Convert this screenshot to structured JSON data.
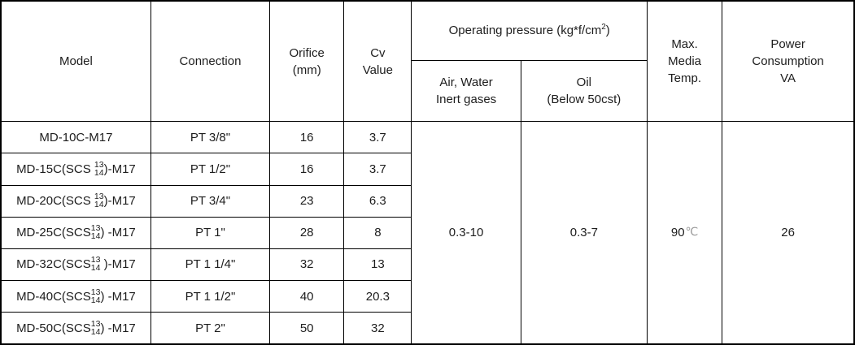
{
  "table": {
    "header": {
      "model": "Model",
      "connection": "Connection",
      "orifice_line1": "Orifice",
      "orifice_line2": "(mm)",
      "cv_line1": "Cv",
      "cv_line2": "Value",
      "op_pressure_prefix": "Operating pressure (kg*f/cm",
      "op_pressure_sup": "2",
      "op_pressure_suffix": ")",
      "air_line1": "Air, Water",
      "air_line2": "Inert gases",
      "oil_line1": "Oil",
      "oil_line2": "(Below 50cst)",
      "max_temp_line1": "Max.",
      "max_temp_line2": "Media",
      "max_temp_line3": "Temp.",
      "power_line1": "Power",
      "power_line2": "Consumption",
      "power_line3": "VA"
    },
    "rows": [
      {
        "model_prefix": "MD-10C-M17",
        "stack_top": "",
        "stack_bottom": "",
        "model_suffix": "",
        "connection": "PT 3/8\"",
        "orifice": "16",
        "cv": "3.7"
      },
      {
        "model_prefix": "MD-15C(SCS ",
        "stack_top": "13",
        "stack_bottom": "14",
        "model_suffix": ")-M17",
        "connection": "PT 1/2\"",
        "orifice": "16",
        "cv": "3.7"
      },
      {
        "model_prefix": "MD-20C(SCS ",
        "stack_top": "13",
        "stack_bottom": "14",
        "model_suffix": ")-M17",
        "connection": "PT 3/4\"",
        "orifice": "23",
        "cv": "6.3"
      },
      {
        "model_prefix": "MD-25C(SCS",
        "stack_top": "13",
        "stack_bottom": "14",
        "model_suffix": ") -M17",
        "connection": "PT 1\"",
        "orifice": "28",
        "cv": "8"
      },
      {
        "model_prefix": "MD-32C(SCS",
        "stack_top": "13",
        "stack_bottom": "14",
        "model_suffix": " )-M17",
        "connection": "PT 1 1/4\"",
        "orifice": "32",
        "cv": "13"
      },
      {
        "model_prefix": "MD-40C(SCS",
        "stack_top": "13",
        "stack_bottom": "14",
        "model_suffix": ") -M17",
        "connection": "PT 1 1/2\"",
        "orifice": "40",
        "cv": "20.3"
      },
      {
        "model_prefix": "MD-50C(SCS",
        "stack_top": "13",
        "stack_bottom": "14",
        "model_suffix": ") -M17",
        "connection": "PT 2\"",
        "orifice": "50",
        "cv": "32"
      }
    ],
    "merged": {
      "air_water_pressure": "0.3-10",
      "oil_pressure": "0.3-7",
      "max_temp_value": "90",
      "max_temp_unit": "℃",
      "power_consumption": "26"
    }
  }
}
